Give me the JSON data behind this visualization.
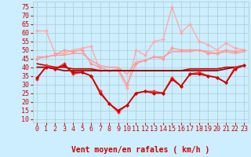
{
  "hours": [
    0,
    1,
    2,
    3,
    4,
    5,
    6,
    7,
    8,
    9,
    10,
    11,
    12,
    13,
    14,
    15,
    16,
    17,
    18,
    19,
    20,
    21,
    22,
    23
  ],
  "series": [
    {
      "label": "rafales_light1",
      "color": "#ffaaaa",
      "linewidth": 1.0,
      "marker": "D",
      "markersize": 2.5,
      "values": [
        61,
        61,
        48,
        48,
        50,
        51,
        52,
        38,
        38,
        38,
        28,
        50,
        47,
        55,
        56,
        75,
        60,
        65,
        55,
        53,
        50,
        54,
        51,
        50
      ]
    },
    {
      "label": "rafales_light2",
      "color": "#ff9999",
      "linewidth": 1.0,
      "marker": "D",
      "markersize": 2.5,
      "values": [
        45,
        46,
        47,
        50,
        49,
        50,
        42,
        40,
        38,
        39,
        30,
        42,
        44,
        46,
        45,
        51,
        50,
        50,
        50,
        48,
        48,
        50,
        49,
        50
      ]
    },
    {
      "label": "vent_moyen_light",
      "color": "#ff9999",
      "linewidth": 1.0,
      "marker": null,
      "markersize": 0,
      "values": [
        46,
        46,
        47,
        47,
        48,
        48,
        44,
        41,
        40,
        40,
        36,
        43,
        44,
        46,
        46,
        49,
        49,
        49,
        50,
        49,
        48,
        49,
        48,
        49
      ]
    },
    {
      "label": "vent_moyen_dark",
      "color": "#cc0000",
      "linewidth": 1.2,
      "marker": null,
      "markersize": 0,
      "values": [
        42,
        41,
        40,
        40,
        39,
        39,
        39,
        38,
        38,
        38,
        38,
        38,
        38,
        38,
        38,
        38,
        38,
        39,
        39,
        39,
        39,
        40,
        40,
        41
      ]
    },
    {
      "label": "vent_moyen_dark2",
      "color": "#880000",
      "linewidth": 1.2,
      "marker": null,
      "markersize": 0,
      "values": [
        40,
        40,
        39,
        38,
        38,
        38,
        38,
        38,
        38,
        38,
        38,
        38,
        38,
        38,
        38,
        38,
        38,
        38,
        38,
        38,
        38,
        39,
        40,
        41
      ]
    },
    {
      "label": "rafales_red",
      "color": "#ff3333",
      "linewidth": 1.2,
      "marker": "D",
      "markersize": 2.5,
      "values": [
        33,
        41,
        39,
        42,
        36,
        37,
        35,
        26,
        19,
        14,
        18,
        25,
        26,
        26,
        25,
        34,
        29,
        36,
        37,
        35,
        34,
        31,
        40,
        41
      ]
    },
    {
      "label": "vent_min",
      "color": "#cc0000",
      "linewidth": 1.2,
      "marker": "D",
      "markersize": 2.5,
      "values": [
        34,
        40,
        39,
        41,
        37,
        37,
        35,
        25,
        19,
        15,
        18,
        25,
        26,
        25,
        25,
        33,
        29,
        36,
        36,
        35,
        34,
        31,
        39,
        41
      ]
    }
  ],
  "arrows": [
    "↓",
    "↓",
    "↙",
    "↓",
    "↙",
    "↙",
    "↙",
    "↙",
    "↙",
    "←",
    "↑",
    "↑",
    "↑",
    "↑",
    "↑",
    "↑",
    "↑",
    "↖",
    "↖",
    "↖",
    "↖",
    "↖",
    "↖",
    "↖"
  ],
  "xlabel": "Vent moyen/en rafales ( km/h )",
  "ylabel_ticks": [
    10,
    15,
    20,
    25,
    30,
    35,
    40,
    45,
    50,
    55,
    60,
    65,
    70,
    75
  ],
  "xlim": [
    -0.5,
    23.5
  ],
  "ylim": [
    8,
    78
  ],
  "bg_color": "#cceeff",
  "grid_color": "#aacccc",
  "tick_color": "#cc0000",
  "xlabel_color": "#cc0000",
  "xlabel_fontsize": 7,
  "tick_fontsize": 6
}
